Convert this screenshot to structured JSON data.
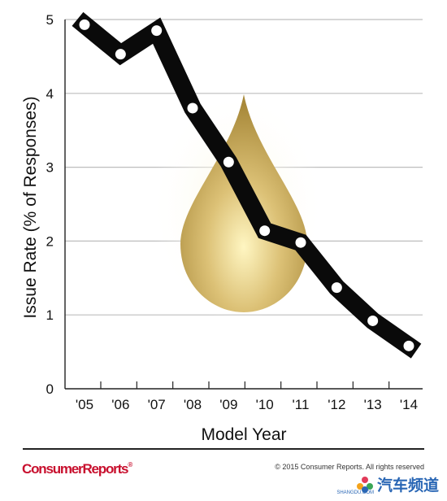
{
  "chart_data": {
    "type": "line",
    "xlabel": "Model Year",
    "ylabel": "Issue Rate (% of Responses)",
    "categories": [
      "'05",
      "'06",
      "'07",
      "'08",
      "'09",
      "'10",
      "'11",
      "'12",
      "'13",
      "'14"
    ],
    "series": [
      {
        "values": [
          4.93,
          4.53,
          4.85,
          3.8,
          3.07,
          2.14,
          1.98,
          1.37,
          0.92,
          0.58
        ]
      }
    ],
    "ylim": [
      0,
      5
    ],
    "yticks": [
      0,
      1,
      2,
      3,
      4,
      5
    ],
    "grid": true,
    "colors": {
      "line": "#0a0a0a",
      "marker": "#ffffff",
      "grid": "#bdbdbd",
      "drop": "#c9a94e"
    }
  },
  "footer": {
    "brand": "ConsumerReports",
    "brand_mark": "®",
    "copyright": "© 2015 Consumer Reports. All rights reserved"
  },
  "watermark": {
    "text": "汽车频道",
    "subtext": "SHANGDU.COM",
    "icon": "flower-logo-icon"
  }
}
